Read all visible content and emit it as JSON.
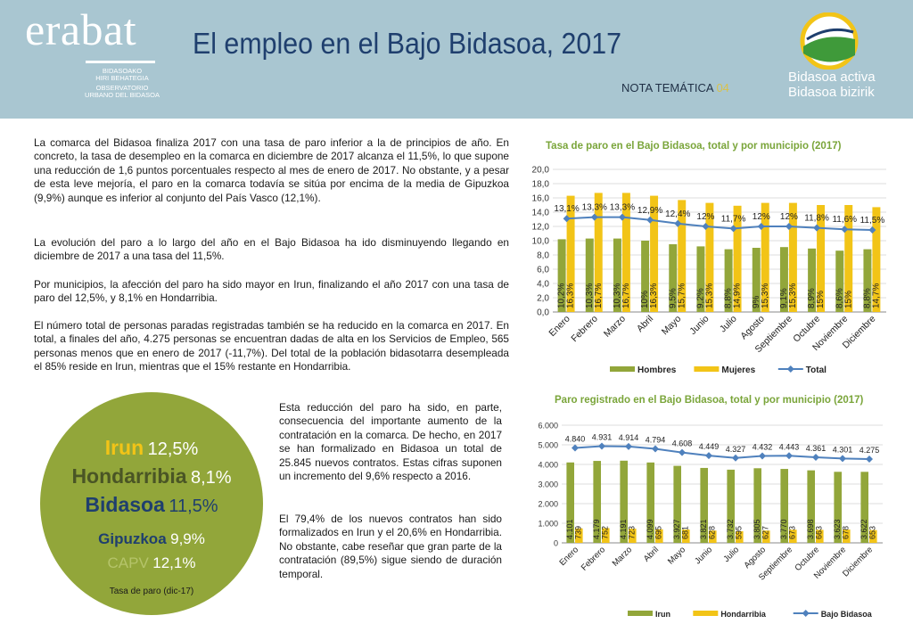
{
  "header": {
    "logo": "erabat",
    "logo_sub": [
      "BIDASOAKO",
      "HIRI BEHATEGIA",
      "OBSERVATORIO",
      "URBANO DEL BIDASOA"
    ],
    "title": "El empleo en el Bajo Bidasoa, 2017",
    "nota_label": "NOTA TEMÁTICA",
    "nota_number": "04",
    "brand_line1": "Bidasoa activa",
    "brand_line2": "Bidasoa bizirik"
  },
  "text": {
    "p1": "La comarca del Bidasoa finaliza 2017 con una tasa de paro inferior a la de principios de año. En concreto, la tasa de desempleo en la comarca en diciembre de 2017 alcanza el 11,5%, lo que supone una reducción de 1,6 puntos porcentuales respecto al mes de enero de 2017. No obstante, y a pesar de esta leve mejoría, el paro en la comarca todavía se sitúa por encima de la media de Gipuzkoa (9,9%) aunque es inferior al conjunto del País Vasco (12,1%).",
    "p2": "La evolución del paro a lo largo del año en el Bajo Bidasoa ha ido disminuyendo llegando en diciembre de 2017 a una tasa del 11,5%.",
    "p3": "Por municipios, la afección del paro ha sido mayor en Irun, finalizando el año 2017 con una tasa de paro del 12,5%, y 8,1% en Hondarribia.",
    "p4": "El número total de personas paradas registradas también se ha reducido en la comarca en 2017. En total, a finales del año, 4.275 personas se encuentran dadas de alta en los Servicios de Empleo, 565 personas menos que en enero de 2017 (-11,7%). Del total de la población bidasotarra desempleada el 85% reside en Irun, mientras que el 15% restante en Hondarribia.",
    "p5": "Esta reducción del paro ha sido, en parte, consecuencia del importante aumento de la contratación en la comarca. De hecho, en 2017 se han formalizado en Bidasoa un total de 25.845 nuevos contratos. Estas cifras suponen un incremento del 9,6% respecto a 2016.",
    "p6": "El 79,4% de los nuevos contratos han sido formalizados en Irun y el 20,6% en Hondarribia. No obstante, cabe reseñar que gran parte de la contratación (89,5%) sigue siendo de duración temporal."
  },
  "circle": {
    "irun_label": "Irun",
    "irun_value": "12,5%",
    "hond_label": "Hondarribia",
    "hond_value": "8,1%",
    "bid_label": "Bidasoa",
    "bid_value": "11,5%",
    "gip_label": "Gipuzkoa",
    "gip_value": "9,9%",
    "capv_label": "CAPV",
    "capv_value": "12,1%",
    "note": "Tasa de paro (dic-17)",
    "colors": {
      "bg": "#92a63a",
      "yellow": "#f2c417",
      "dark": "#1f3f6e",
      "white": "#ffffff"
    }
  },
  "chart_data": [
    {
      "type": "bar",
      "title": "Tasa de paro en el Bajo Bidasoa, total y por municipio (2017)",
      "categories": [
        "Enero",
        "Febrero",
        "Marzo",
        "Abril",
        "Mayo",
        "Junio",
        "Julio",
        "Agosto",
        "Septiembre",
        "Octubre",
        "Noviembre",
        "Diciembre"
      ],
      "series": [
        {
          "name": "Hombres",
          "kind": "bar",
          "color": "#92a63a",
          "values": [
            10.2,
            10.3,
            10.3,
            10,
            9.5,
            9.2,
            8.8,
            9,
            9.1,
            8.9,
            8.6,
            8.8
          ],
          "labels": [
            "10,2%",
            "10,3%",
            "10,3%",
            "10%",
            "9,5%",
            "9,2%",
            "8,8%",
            "9%",
            "9,1%",
            "8,9%",
            "8,6%",
            "8,8%"
          ]
        },
        {
          "name": "Mujeres",
          "kind": "bar",
          "color": "#f2c417",
          "values": [
            16.3,
            16.7,
            16.7,
            16.3,
            15.7,
            15.3,
            14.9,
            15.3,
            15.3,
            15,
            15,
            14.7
          ],
          "labels": [
            "16,3%",
            "16,7%",
            "16,7%",
            "16,3%",
            "15,7%",
            "15,3%",
            "14,9%",
            "15,3%",
            "15,3%",
            "15%",
            "15%",
            "14,7%"
          ]
        },
        {
          "name": "Total",
          "kind": "line",
          "color": "#4f81bd",
          "values": [
            13.1,
            13.3,
            13.3,
            12.9,
            12.4,
            12,
            11.7,
            12,
            12,
            11.8,
            11.6,
            11.5
          ],
          "labels": [
            "13,1%",
            "13,3%",
            "13,3%",
            "12,9%",
            "12,4%",
            "12%",
            "11,7%",
            "12%",
            "12%",
            "11,8%",
            "11,6%",
            "11,5%"
          ]
        }
      ],
      "ylim": [
        0,
        20
      ],
      "yticks": [
        "0,0",
        "2,0",
        "4,0",
        "6,0",
        "8,0",
        "10,0",
        "12,0",
        "14,0",
        "16,0",
        "18,0",
        "20,0"
      ],
      "grid": true,
      "legend": "bottom"
    },
    {
      "type": "bar",
      "title": "Paro registrado en el Bajo Bidasoa, total y por municipio (2017)",
      "categories": [
        "Enero",
        "Febrero",
        "Marzo",
        "Abril",
        "Mayo",
        "Junio",
        "Julio",
        "Agosto",
        "Septiembre",
        "Octubre",
        "Noviembre",
        "Diciembre"
      ],
      "series": [
        {
          "name": "Irun",
          "kind": "bar",
          "color": "#92a63a",
          "values": [
            4101,
            4179,
            4191,
            4099,
            3927,
            3821,
            3732,
            3805,
            3770,
            3698,
            3623,
            3622
          ],
          "labels": [
            "4.101",
            "4.179",
            "4.191",
            "4.099",
            "3.927",
            "3.821",
            "3.732",
            "3.805",
            "3.770",
            "3.698",
            "3.623",
            "3.622"
          ]
        },
        {
          "name": "Hondarribia",
          "kind": "bar",
          "color": "#f2c417",
          "values": [
            739,
            752,
            723,
            695,
            681,
            628,
            595,
            627,
            673,
            663,
            678,
            653
          ],
          "labels": [
            "739",
            "752",
            "723",
            "695",
            "681",
            "628",
            "595",
            "627",
            "673",
            "663",
            "678",
            "653"
          ]
        },
        {
          "name": "Bajo Bidasoa",
          "kind": "line",
          "color": "#4f81bd",
          "values": [
            4840,
            4931,
            4914,
            4794,
            4608,
            4449,
            4327,
            4432,
            4443,
            4361,
            4301,
            4275
          ],
          "labels": [
            "4.840",
            "4.931",
            "4.914",
            "4.794",
            "4.608",
            "4.449",
            "4.327",
            "4.432",
            "4.443",
            "4.361",
            "4.301",
            "4.275"
          ]
        }
      ],
      "ylim": [
        0,
        6000
      ],
      "yticks": [
        "0",
        "1.000",
        "2.000",
        "3.000",
        "4.000",
        "5.000",
        "6.000"
      ],
      "grid": true,
      "legend": "bottom"
    }
  ]
}
